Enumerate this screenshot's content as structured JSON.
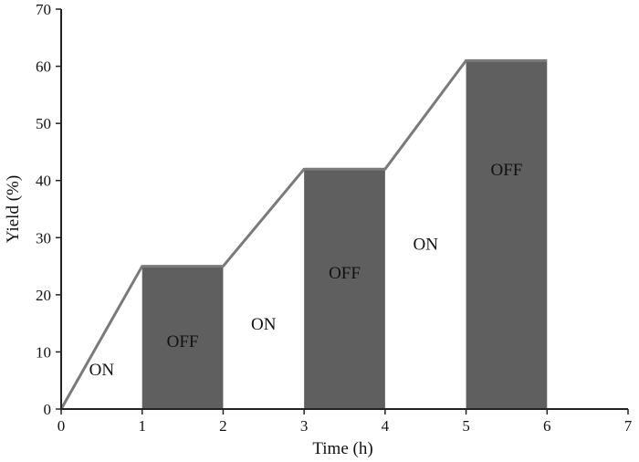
{
  "chart_data": {
    "type": "line",
    "title": "",
    "xlabel": "Time (h)",
    "ylabel": "Yield (%)",
    "xlim": [
      0,
      7
    ],
    "ylim": [
      0,
      70
    ],
    "x_ticks": [
      0,
      1,
      2,
      3,
      4,
      5,
      6,
      7
    ],
    "y_ticks": [
      0,
      10,
      20,
      30,
      40,
      50,
      60,
      70
    ],
    "grid": false,
    "legend": "none",
    "series": [
      {
        "x": [
          0,
          1,
          2,
          3,
          4,
          5,
          6
        ],
        "y": [
          0,
          25,
          25,
          42,
          42,
          61,
          61
        ],
        "color": "#7a7a7a"
      }
    ],
    "regions": [
      {
        "label": "ON",
        "x_start": 0,
        "x_end": 1,
        "shaded": false,
        "label_y": 7
      },
      {
        "label": "OFF",
        "x_start": 1,
        "x_end": 2,
        "y_top": 25,
        "shaded": true,
        "label_y": 12
      },
      {
        "label": "ON",
        "x_start": 2,
        "x_end": 3,
        "shaded": false,
        "label_y": 15
      },
      {
        "label": "OFF",
        "x_start": 3,
        "x_end": 4,
        "y_top": 42,
        "shaded": true,
        "label_y": 24
      },
      {
        "label": "ON",
        "x_start": 4,
        "x_end": 5,
        "shaded": false,
        "label_y": 29
      },
      {
        "label": "OFF",
        "x_start": 5,
        "x_end": 6,
        "y_top": 61,
        "shaded": true,
        "label_y": 42
      }
    ],
    "colors": {
      "bar_fill": "#5f5f5f",
      "line": "#7a7a7a",
      "axis": "#222222",
      "on_text": "#111111",
      "off_text": "#111111"
    }
  }
}
